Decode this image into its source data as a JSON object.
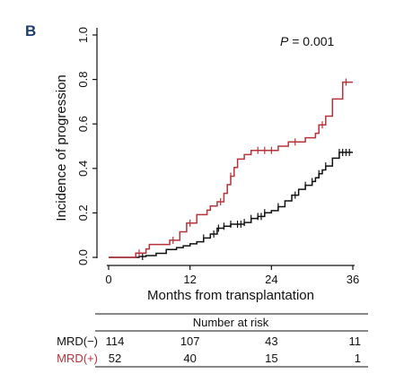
{
  "panel_label": "B",
  "chart_data": {
    "type": "line",
    "title": "",
    "annotation": {
      "prefix": "P",
      "text": " = 0.001"
    },
    "xlabel": "Months from transplantation",
    "ylabel": "Incidence of progression",
    "xlim": [
      0,
      36
    ],
    "ylim": [
      0,
      1
    ],
    "x_ticks": [
      0,
      12,
      24,
      36
    ],
    "y_ticks": [
      {
        "value": 0.0,
        "label": "0.0"
      },
      {
        "value": 0.2,
        "label": "0.2"
      },
      {
        "value": 0.4,
        "label": "0.4"
      },
      {
        "value": 0.6,
        "label": "0.6"
      },
      {
        "value": 0.8,
        "label": "0.8"
      },
      {
        "value": 1.0,
        "label": "1.0"
      }
    ],
    "grid": false,
    "series": [
      {
        "name": "MRD(−)",
        "color": "#111111",
        "steps": [
          [
            0,
            0
          ],
          [
            4.5,
            0.004
          ],
          [
            5.5,
            0.008
          ],
          [
            7,
            0.018
          ],
          [
            8.5,
            0.035
          ],
          [
            10,
            0.044
          ],
          [
            11,
            0.052
          ],
          [
            12,
            0.061
          ],
          [
            13,
            0.07
          ],
          [
            14,
            0.087
          ],
          [
            15,
            0.105
          ],
          [
            16,
            0.131
          ],
          [
            17,
            0.14
          ],
          [
            18,
            0.149
          ],
          [
            20,
            0.157
          ],
          [
            21,
            0.175
          ],
          [
            22,
            0.184
          ],
          [
            23,
            0.201
          ],
          [
            24,
            0.21
          ],
          [
            25,
            0.228
          ],
          [
            26,
            0.254
          ],
          [
            27,
            0.28
          ],
          [
            28,
            0.306
          ],
          [
            29,
            0.324
          ],
          [
            30,
            0.341
          ],
          [
            30.5,
            0.358
          ],
          [
            31,
            0.376
          ],
          [
            31.5,
            0.393
          ],
          [
            32,
            0.411
          ],
          [
            33,
            0.446
          ],
          [
            34,
            0.472
          ],
          [
            36,
            0.472
          ]
        ],
        "censor_x": [
          5,
          14,
          15.5,
          16.2,
          17,
          18,
          19,
          19.5,
          20,
          21,
          22,
          22.5,
          23,
          25,
          27.5,
          29,
          30,
          31,
          32,
          34,
          34.5,
          35,
          35.5
        ]
      },
      {
        "name": "MRD(+)",
        "color": "#b5333b",
        "steps": [
          [
            0,
            0
          ],
          [
            4,
            0.019
          ],
          [
            5.5,
            0.038
          ],
          [
            6,
            0.058
          ],
          [
            9,
            0.077
          ],
          [
            10.5,
            0.115
          ],
          [
            11.5,
            0.154
          ],
          [
            13,
            0.192
          ],
          [
            14.5,
            0.212
          ],
          [
            15,
            0.231
          ],
          [
            16,
            0.25
          ],
          [
            17,
            0.288
          ],
          [
            17.5,
            0.327
          ],
          [
            18,
            0.365
          ],
          [
            18.5,
            0.404
          ],
          [
            19,
            0.442
          ],
          [
            20,
            0.462
          ],
          [
            21,
            0.481
          ],
          [
            25,
            0.5
          ],
          [
            26.5,
            0.519
          ],
          [
            29,
            0.538
          ],
          [
            30.5,
            0.558
          ],
          [
            31,
            0.596
          ],
          [
            32,
            0.635
          ],
          [
            33,
            0.712
          ],
          [
            34.5,
            0.788
          ],
          [
            36,
            0.788
          ]
        ],
        "censor_x": [
          4.5,
          9.5,
          12,
          16.5,
          18,
          22,
          23,
          24,
          27.5,
          31.5,
          35
        ]
      }
    ],
    "risk_table": {
      "title": "Number at risk",
      "rows": [
        {
          "label": "MRD(−)",
          "values": [
            "114",
            "107",
            "43",
            "11"
          ],
          "color": "#111111"
        },
        {
          "label": "MRD(+)",
          "values": [
            "52",
            "40",
            "15",
            "1"
          ],
          "color": "#b5333b"
        }
      ]
    }
  }
}
